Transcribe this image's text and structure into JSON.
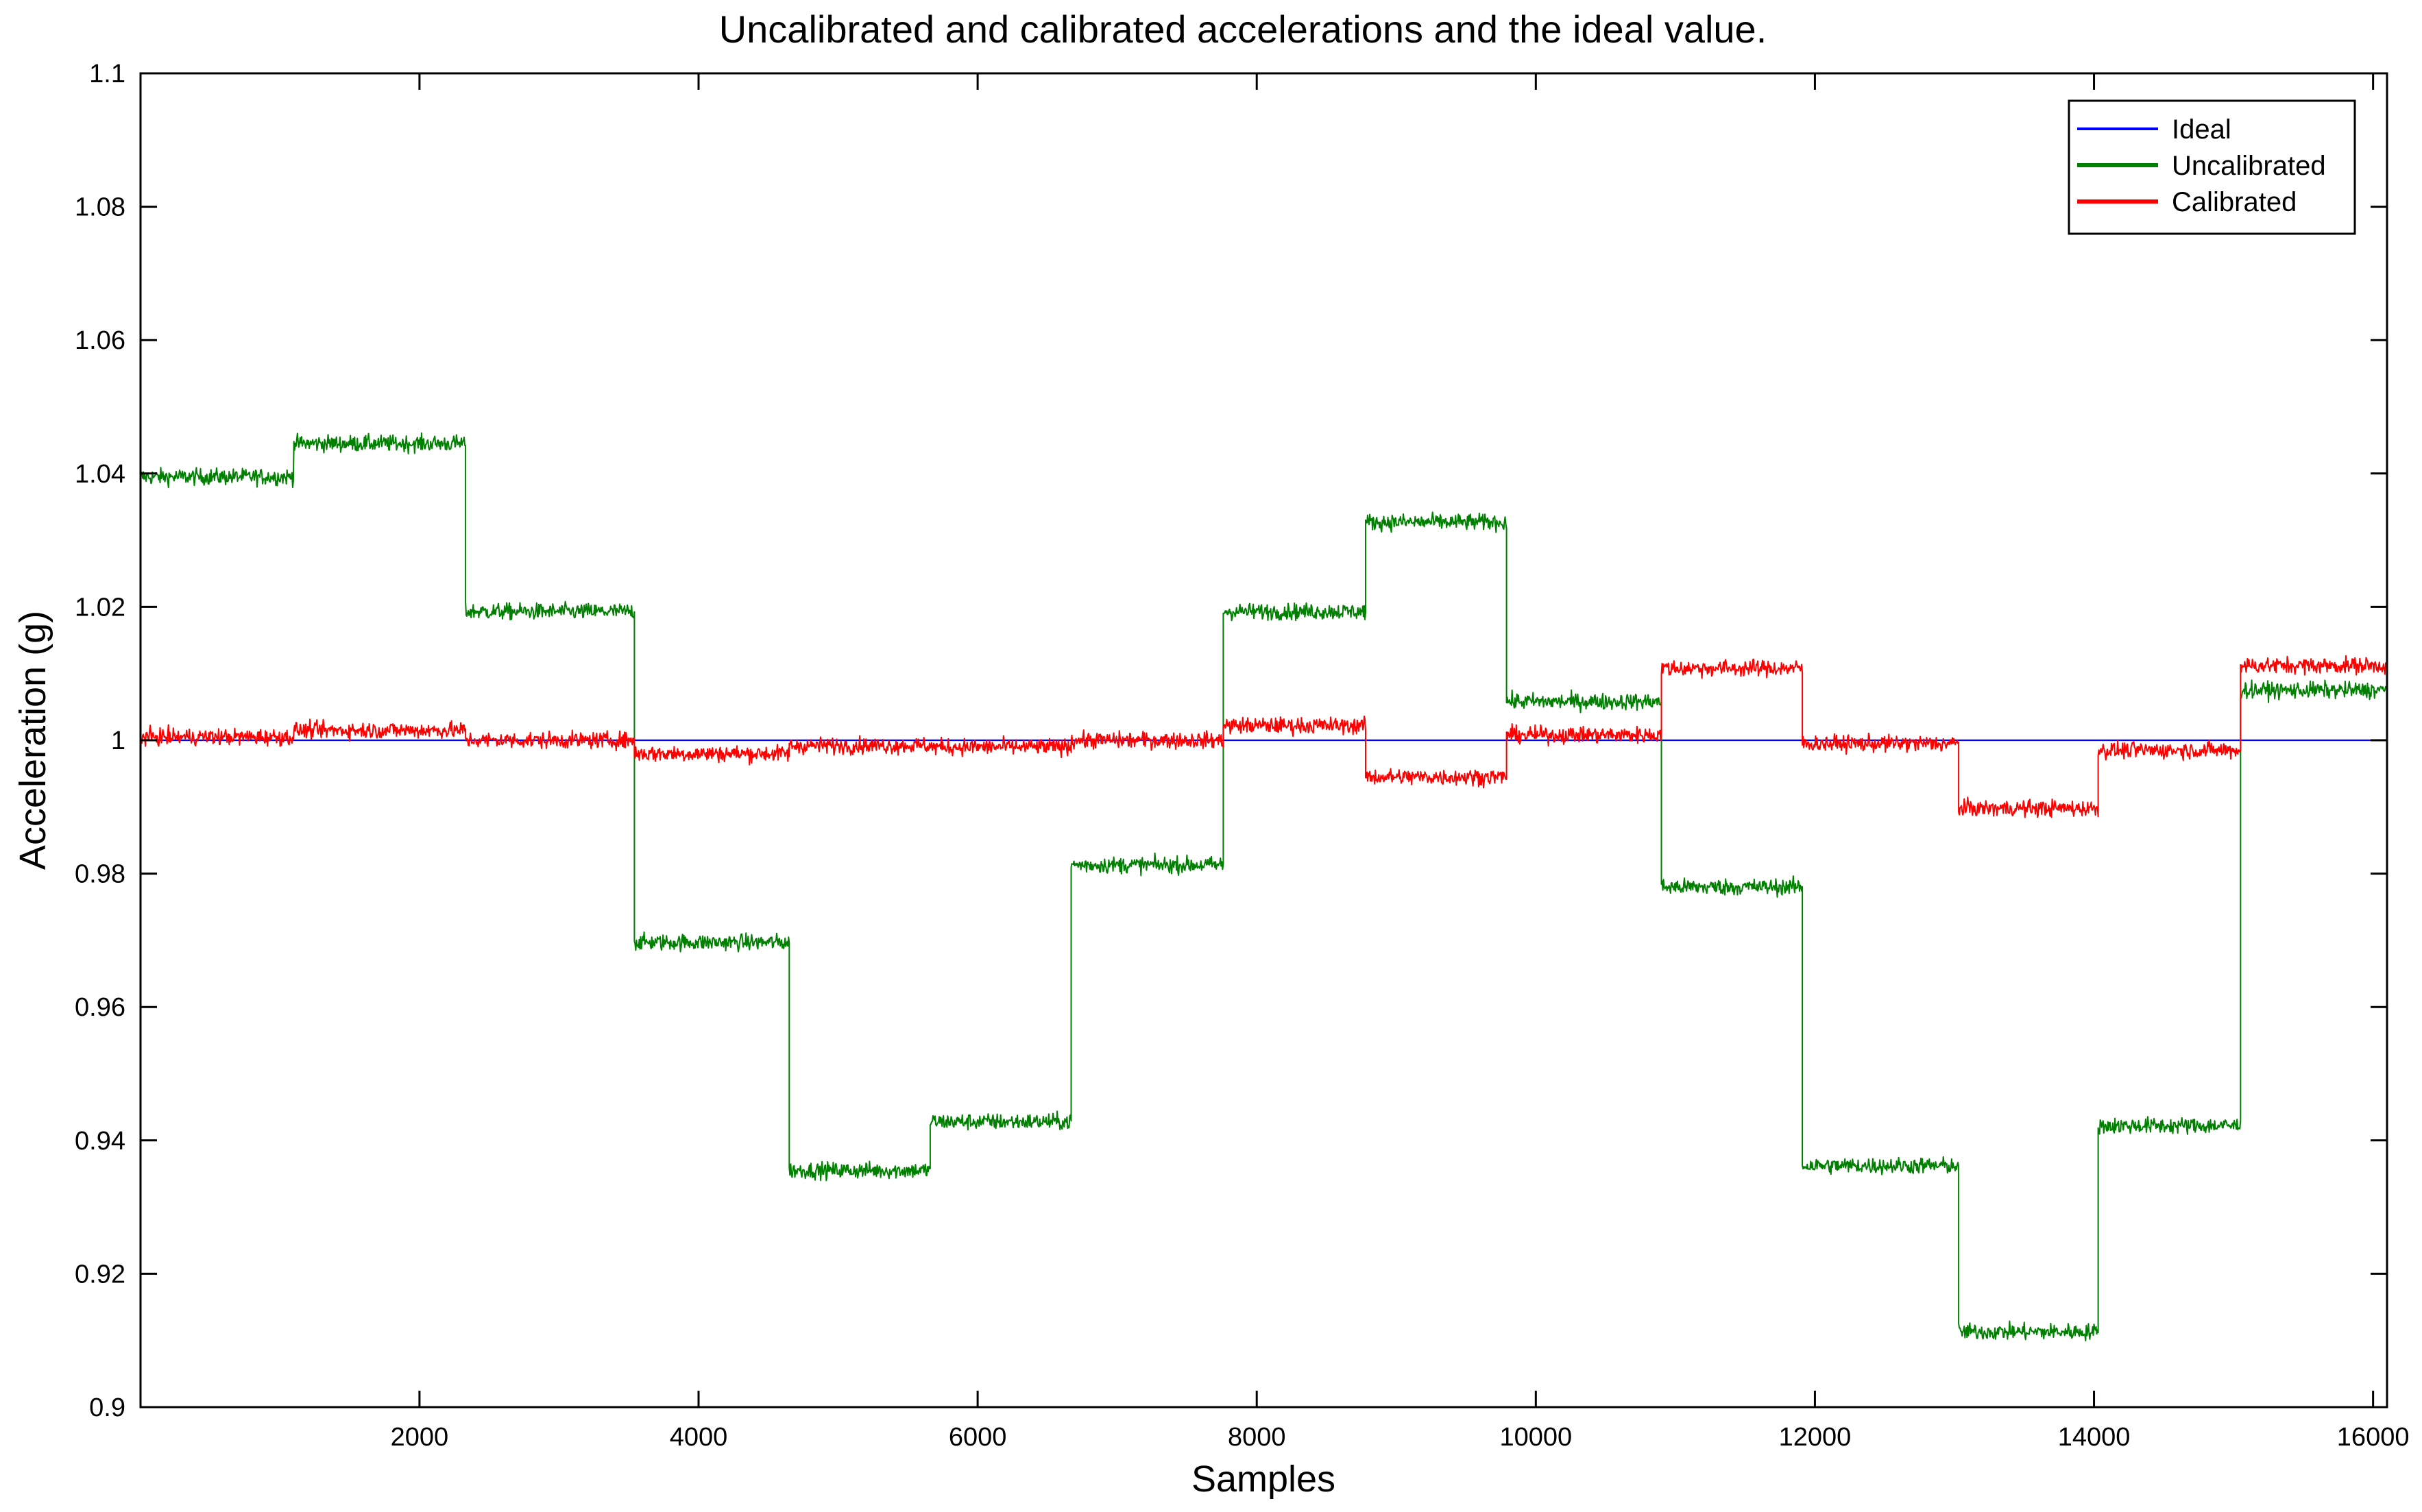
{
  "chart_data": {
    "type": "line",
    "title": "Uncalibrated and calibrated accelerations and the ideal value.",
    "xlabel": "Samples",
    "ylabel": "Acceleration (g)",
    "xlim": [
      1,
      16100
    ],
    "ylim": [
      0.9,
      1.1
    ],
    "xticks": [
      2000,
      4000,
      6000,
      8000,
      10000,
      12000,
      14000,
      16000
    ],
    "xtick_labels": [
      "2000",
      "4000",
      "6000",
      "8000",
      "10000",
      "12000",
      "14000",
      "16000"
    ],
    "yticks": [
      0.9,
      0.92,
      0.94,
      0.96,
      0.98,
      1.0,
      1.02,
      1.04,
      1.06,
      1.08,
      1.1
    ],
    "ytick_labels": [
      "0.9",
      "0.92",
      "0.94",
      "0.96",
      "0.98",
      "1",
      "1.02",
      "1.04",
      "1.06",
      "1.08",
      "1.1"
    ],
    "grid": false,
    "legend_position": "top-right",
    "series": [
      {
        "name": "Ideal",
        "color": "#0000ff",
        "noise": 0,
        "segments": [
          {
            "x0": 1,
            "x1": 16100,
            "y": 1.0
          }
        ]
      },
      {
        "name": "Uncalibrated",
        "color": "#008000",
        "noise": 0.0011,
        "segments": [
          {
            "x0": 1,
            "x1": 1100,
            "y": 1.0395
          },
          {
            "x0": 1100,
            "x1": 2330,
            "y": 1.0445
          },
          {
            "x0": 2330,
            "x1": 3540,
            "y": 1.0193
          },
          {
            "x0": 3540,
            "x1": 4650,
            "y": 0.9697
          },
          {
            "x0": 4650,
            "x1": 5660,
            "y": 0.9355
          },
          {
            "x0": 5660,
            "x1": 6670,
            "y": 0.9428
          },
          {
            "x0": 6670,
            "x1": 7760,
            "y": 0.9813
          },
          {
            "x0": 7760,
            "x1": 8780,
            "y": 1.0193
          },
          {
            "x0": 8780,
            "x1": 9790,
            "y": 1.0327
          },
          {
            "x0": 9790,
            "x1": 10900,
            "y": 1.0058
          },
          {
            "x0": 10900,
            "x1": 11910,
            "y": 0.978
          },
          {
            "x0": 11910,
            "x1": 13030,
            "y": 0.9362
          },
          {
            "x0": 13030,
            "x1": 14030,
            "y": 0.9113
          },
          {
            "x0": 14030,
            "x1": 15050,
            "y": 0.9422
          },
          {
            "x0": 15050,
            "x1": 16100,
            "y": 1.0075
          }
        ]
      },
      {
        "name": "Calibrated",
        "color": "#ff0000",
        "noise": 0.0011,
        "segments": [
          {
            "x0": 1,
            "x1": 1100,
            "y": 1.0005
          },
          {
            "x0": 1100,
            "x1": 2330,
            "y": 1.0015
          },
          {
            "x0": 2330,
            "x1": 3540,
            "y": 1.0
          },
          {
            "x0": 3540,
            "x1": 4650,
            "y": 0.998
          },
          {
            "x0": 4650,
            "x1": 5660,
            "y": 0.9992
          },
          {
            "x0": 5660,
            "x1": 6670,
            "y": 0.999
          },
          {
            "x0": 6670,
            "x1": 7760,
            "y": 1.0
          },
          {
            "x0": 7760,
            "x1": 8780,
            "y": 1.0022
          },
          {
            "x0": 8780,
            "x1": 9790,
            "y": 0.9945
          },
          {
            "x0": 9790,
            "x1": 10900,
            "y": 1.0008
          },
          {
            "x0": 10900,
            "x1": 11910,
            "y": 1.0108
          },
          {
            "x0": 11910,
            "x1": 13030,
            "y": 0.9995
          },
          {
            "x0": 13030,
            "x1": 14030,
            "y": 0.9898
          },
          {
            "x0": 14030,
            "x1": 15050,
            "y": 0.9985
          },
          {
            "x0": 15050,
            "x1": 16100,
            "y": 1.0112
          }
        ]
      }
    ]
  }
}
